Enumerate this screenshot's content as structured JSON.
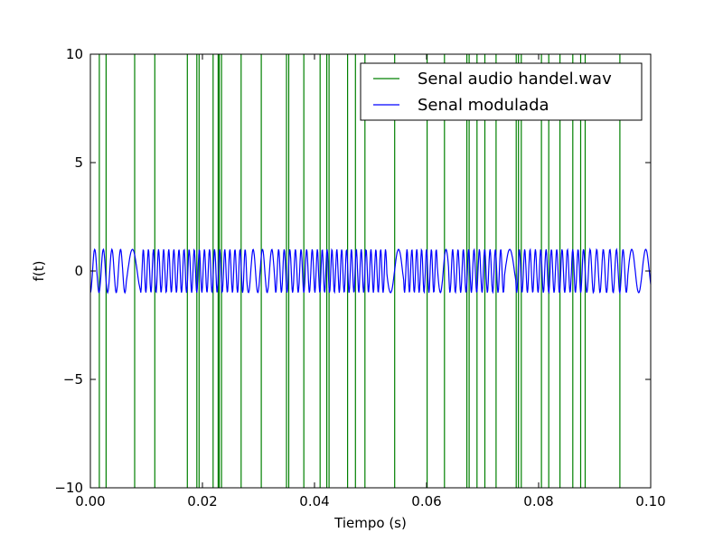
{
  "chart_data": {
    "type": "line",
    "title": "",
    "xlabel": "Tiempo (s)",
    "ylabel": "f(t)",
    "xlim": [
      0.0,
      0.1
    ],
    "ylim": [
      -10,
      10
    ],
    "grid": false,
    "legend_position": "top-right",
    "x_ticks": [
      0.0,
      0.02,
      0.04,
      0.06,
      0.08,
      0.1
    ],
    "x_tick_labels": [
      "0.00",
      "0.02",
      "0.04",
      "0.06",
      "0.08",
      "0.10"
    ],
    "y_ticks": [
      -10,
      -5,
      0,
      5,
      10
    ],
    "y_tick_labels": [
      "−10",
      "−5",
      "0",
      "5",
      "10"
    ],
    "series": [
      {
        "name": "Senal audio handel.wav",
        "color": "#008000",
        "kind": "vertical-spikes",
        "x": [
          0.0016,
          0.0028,
          0.0079,
          0.0115,
          0.0173,
          0.019,
          0.0194,
          0.0219,
          0.0228,
          0.023,
          0.0234,
          0.0269,
          0.0305,
          0.035,
          0.0354,
          0.0381,
          0.041,
          0.0422,
          0.0426,
          0.0459,
          0.0473,
          0.049,
          0.0543,
          0.0601,
          0.0632,
          0.0672,
          0.0676,
          0.069,
          0.0704,
          0.0724,
          0.076,
          0.0764,
          0.0769,
          0.0805,
          0.0818,
          0.0838,
          0.0861,
          0.0875,
          0.0883,
          0.0945
        ]
      },
      {
        "name": "Senal modulada",
        "color": "#0000ff",
        "kind": "modulated-oscillation",
        "amplitude": 1,
        "sample_count": 1200,
        "segments": [
          {
            "x0": 0.0,
            "x1": 0.0065,
            "freq": 650
          },
          {
            "x0": 0.0065,
            "x1": 0.009,
            "freq": 300
          },
          {
            "x0": 0.009,
            "x1": 0.028,
            "freq": 1100
          },
          {
            "x0": 0.028,
            "x1": 0.033,
            "freq": 600
          },
          {
            "x0": 0.033,
            "x1": 0.04,
            "freq": 1000
          },
          {
            "x0": 0.04,
            "x1": 0.053,
            "freq": 1150
          },
          {
            "x0": 0.053,
            "x1": 0.056,
            "freq": 350
          },
          {
            "x0": 0.056,
            "x1": 0.062,
            "freq": 1150
          },
          {
            "x0": 0.062,
            "x1": 0.064,
            "freq": 500
          },
          {
            "x0": 0.064,
            "x1": 0.074,
            "freq": 1050
          },
          {
            "x0": 0.074,
            "x1": 0.076,
            "freq": 300
          },
          {
            "x0": 0.076,
            "x1": 0.088,
            "freq": 1050
          },
          {
            "x0": 0.088,
            "x1": 0.096,
            "freq": 850
          },
          {
            "x0": 0.096,
            "x1": 0.1,
            "freq": 400
          }
        ]
      }
    ]
  }
}
